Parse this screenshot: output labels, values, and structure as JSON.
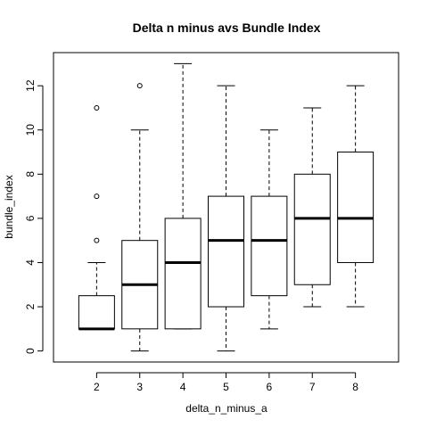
{
  "chart_data": {
    "type": "boxplot",
    "title": "Delta n minus avs Bundle Index",
    "xlabel": "delta_n_minus_a",
    "ylabel": "bundle_index",
    "ylim": [
      -0.5,
      13.5
    ],
    "yticks": [
      0,
      2,
      4,
      6,
      8,
      10,
      12
    ],
    "boxes": [
      {
        "category": "2",
        "whisker_low": 1,
        "q1": 1,
        "median": 1,
        "q3": 2.5,
        "whisker_high": 4,
        "outliers": [
          5,
          7,
          11
        ]
      },
      {
        "category": "3",
        "whisker_low": 0,
        "q1": 1,
        "median": 3,
        "q3": 5,
        "whisker_high": 10,
        "outliers": [
          12
        ]
      },
      {
        "category": "4",
        "whisker_low": 1,
        "q1": 1,
        "median": 4,
        "q3": 6,
        "whisker_high": 13,
        "outliers": []
      },
      {
        "category": "5",
        "whisker_low": 0,
        "q1": 2,
        "median": 5,
        "q3": 7,
        "whisker_high": 12,
        "outliers": []
      },
      {
        "category": "6",
        "whisker_low": 1,
        "q1": 2.5,
        "median": 5,
        "q3": 7,
        "whisker_high": 10,
        "outliers": []
      },
      {
        "category": "7",
        "whisker_low": 2,
        "q1": 3,
        "median": 6,
        "q3": 8,
        "whisker_high": 11,
        "outliers": []
      },
      {
        "category": "8",
        "whisker_low": 2,
        "q1": 4,
        "median": 6,
        "q3": 9,
        "whisker_high": 12,
        "outliers": []
      }
    ]
  }
}
